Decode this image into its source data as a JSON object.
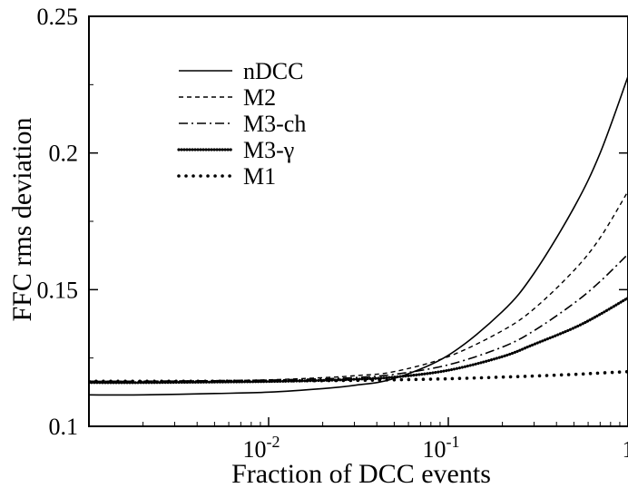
{
  "chart_data": {
    "type": "line",
    "xscale": "log",
    "xlim": [
      0.001,
      1
    ],
    "ylim": [
      0.1,
      0.25
    ],
    "xlabel": "Fraction of DCC events",
    "ylabel": "FFC rms deviation",
    "grid": false,
    "legend_position": "top-left",
    "x_ticks": [
      {
        "value": 0.01,
        "base": "10",
        "exp": "-2"
      },
      {
        "value": 0.1,
        "base": "10",
        "exp": "-1"
      },
      {
        "value": 1,
        "base": "1",
        "exp": ""
      }
    ],
    "y_ticks": [
      {
        "value": 0.1,
        "label": "0.1"
      },
      {
        "value": 0.15,
        "label": "0.15"
      },
      {
        "value": 0.2,
        "label": "0.2"
      },
      {
        "value": 0.25,
        "label": "0.25"
      }
    ],
    "series": [
      {
        "name": "nDCC",
        "style": "solid",
        "x": [
          0.001,
          0.002,
          0.005,
          0.01,
          0.02,
          0.03,
          0.05,
          0.1,
          0.2,
          0.3,
          0.5,
          0.7,
          1.0
        ],
        "y": [
          0.1115,
          0.1115,
          0.112,
          0.1125,
          0.1138,
          0.115,
          0.1175,
          0.126,
          0.142,
          0.156,
          0.18,
          0.2,
          0.228
        ]
      },
      {
        "name": "M2",
        "style": "dashed",
        "x": [
          0.001,
          0.002,
          0.005,
          0.01,
          0.02,
          0.03,
          0.05,
          0.1,
          0.2,
          0.3,
          0.5,
          0.7,
          1.0
        ],
        "y": [
          0.1165,
          0.1165,
          0.1167,
          0.117,
          0.1178,
          0.1185,
          0.12,
          0.1255,
          0.135,
          0.143,
          0.157,
          0.169,
          0.186
        ]
      },
      {
        "name": "M3-ch",
        "style": "dashdot",
        "x": [
          0.001,
          0.002,
          0.005,
          0.01,
          0.02,
          0.03,
          0.05,
          0.1,
          0.2,
          0.3,
          0.5,
          0.7,
          1.0
        ],
        "y": [
          0.1165,
          0.1165,
          0.1167,
          0.1169,
          0.1174,
          0.1178,
          0.119,
          0.1225,
          0.129,
          0.135,
          0.145,
          0.153,
          0.163
        ]
      },
      {
        "name": "M3-γ",
        "style": "dense-dotted",
        "x": [
          0.001,
          0.002,
          0.005,
          0.01,
          0.02,
          0.03,
          0.05,
          0.1,
          0.2,
          0.3,
          0.5,
          0.7,
          1.0
        ],
        "y": [
          0.116,
          0.116,
          0.1162,
          0.1164,
          0.1168,
          0.1172,
          0.118,
          0.1205,
          0.1255,
          0.13,
          0.136,
          0.141,
          0.147
        ]
      },
      {
        "name": "M1",
        "style": "sparse-dotted",
        "x": [
          0.001,
          0.002,
          0.005,
          0.01,
          0.02,
          0.03,
          0.05,
          0.1,
          0.2,
          0.3,
          0.5,
          0.7,
          1.0
        ],
        "y": [
          0.1165,
          0.1165,
          0.1165,
          0.1166,
          0.1167,
          0.1168,
          0.117,
          0.1174,
          0.118,
          0.1184,
          0.119,
          0.1195,
          0.12
        ]
      }
    ]
  }
}
